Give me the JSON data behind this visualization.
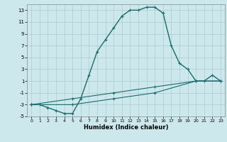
{
  "title": "",
  "xlabel": "Humidex (Indice chaleur)",
  "xlim": [
    -0.5,
    23.5
  ],
  "ylim": [
    -5,
    14
  ],
  "xticks": [
    0,
    1,
    2,
    3,
    4,
    5,
    6,
    7,
    8,
    9,
    10,
    11,
    12,
    13,
    14,
    15,
    16,
    17,
    18,
    19,
    20,
    21,
    22,
    23
  ],
  "yticks": [
    -5,
    -3,
    -1,
    1,
    3,
    5,
    7,
    9,
    11,
    13
  ],
  "bg_color": "#cce8ec",
  "grid_color": "#aacccc",
  "line_color": "#1a6b6b",
  "line1_x": [
    0,
    1,
    2,
    3,
    4,
    5,
    6,
    7,
    8,
    9,
    10,
    11,
    12,
    13,
    14,
    15,
    16,
    17,
    18,
    19,
    20,
    21,
    22,
    23
  ],
  "line1_y": [
    -3,
    -3,
    -3.5,
    -4,
    -4.5,
    -4.5,
    -2,
    2,
    6,
    8,
    10,
    12,
    13,
    13,
    13.5,
    13.5,
    12.5,
    7,
    4,
    3,
    1,
    1,
    2,
    1
  ],
  "line2_x": [
    0,
    23
  ],
  "line2_y": [
    -3,
    1
  ],
  "line3_x": [
    0,
    23
  ],
  "line3_y": [
    -3,
    1
  ],
  "line2_markers_x": [
    0,
    5,
    10,
    15,
    20,
    23
  ],
  "line2_markers_y": [
    -3,
    -2,
    -1,
    0,
    1,
    1
  ],
  "line3_markers_x": [
    0,
    5,
    10,
    15,
    20,
    23
  ],
  "line3_markers_y": [
    -3,
    -3,
    -2,
    -1,
    1,
    1
  ]
}
